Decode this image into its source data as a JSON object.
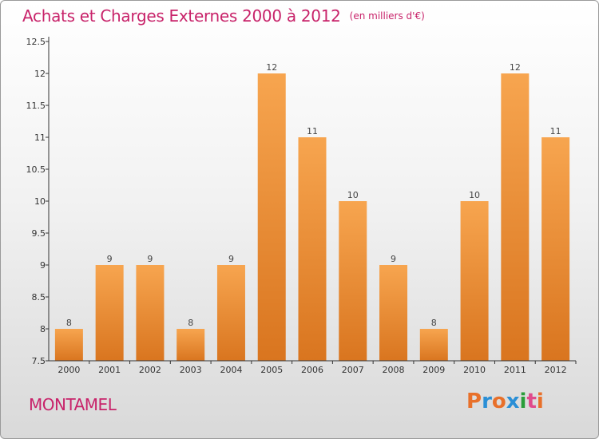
{
  "title": "Achats et Charges Externes 2000 à 2012",
  "subtitle": "(en milliers d'€)",
  "commune": "MONTAMEL",
  "logo_text": "Proxiti",
  "colors": {
    "title": "#c8236a",
    "bar_top": "#f7a54f",
    "bar_bottom": "#d9751f",
    "axis": "#333333",
    "logo_letters": [
      "#e8702a",
      "#2a8fd6",
      "#e8702a",
      "#2a8fd6",
      "#2a9d3a",
      "#e04a8c",
      "#e8702a"
    ]
  },
  "chart_data": {
    "type": "bar",
    "categories": [
      "2000",
      "2001",
      "2002",
      "2003",
      "2004",
      "2005",
      "2006",
      "2007",
      "2008",
      "2009",
      "2010",
      "2011",
      "2012"
    ],
    "values": [
      8,
      9,
      9,
      8,
      9,
      12,
      11,
      10,
      9,
      8,
      10,
      12,
      11
    ],
    "data_labels": [
      "8",
      "9",
      "9",
      "8",
      "9",
      "12",
      "11",
      "10",
      "9",
      "8",
      "10",
      "12",
      "11"
    ],
    "yticks": [
      "7.5",
      "8",
      "8.5",
      "9",
      "9.5",
      "10",
      "10.5",
      "11",
      "11.5",
      "12",
      "12.5"
    ],
    "ylim": [
      7.5,
      12.5
    ],
    "grid": false,
    "legend": "none"
  }
}
